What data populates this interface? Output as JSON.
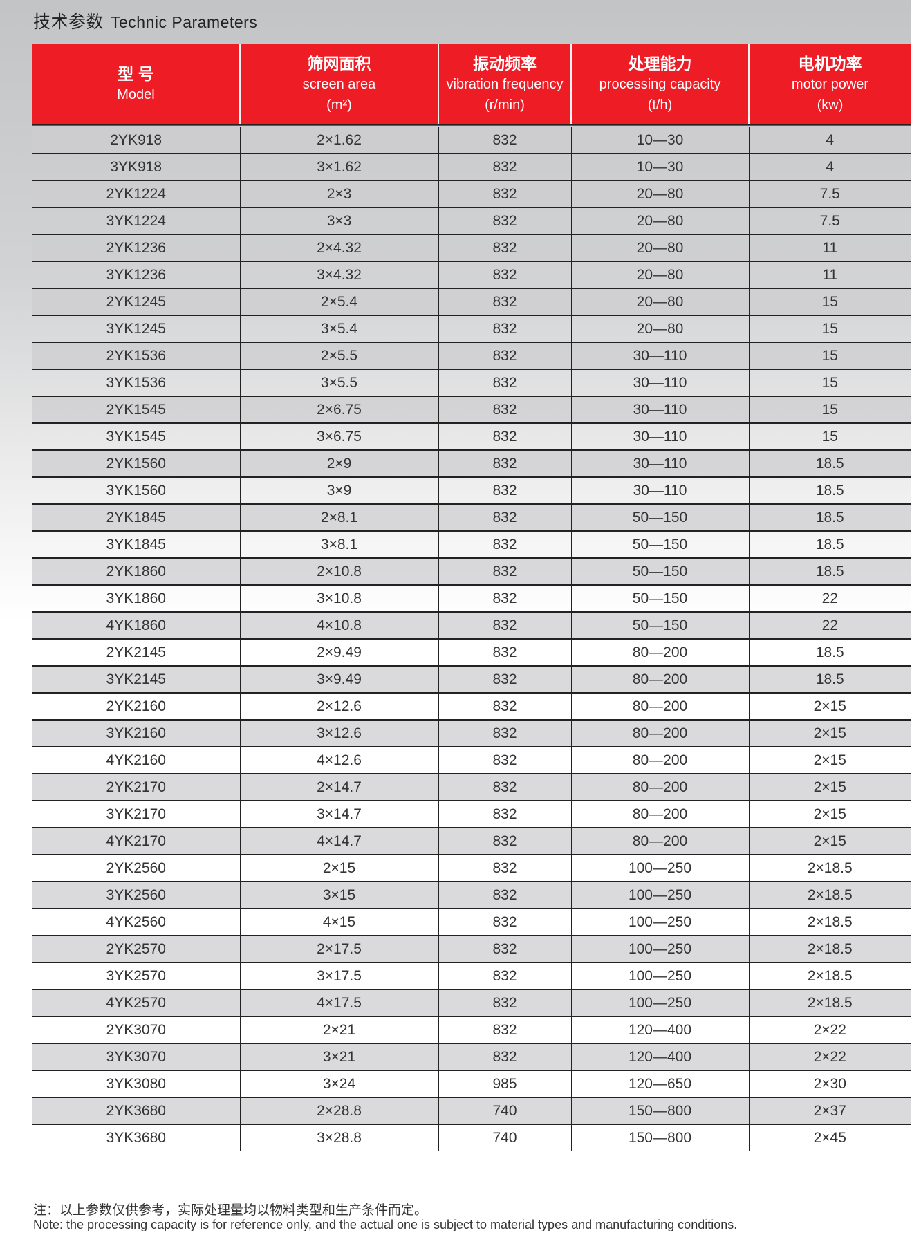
{
  "title": {
    "cn": "技术参数",
    "en": "Technic Parameters"
  },
  "columns": [
    {
      "cn": "型 号",
      "en": "Model",
      "unit": ""
    },
    {
      "cn": "筛网面积",
      "en": "screen area",
      "unit": "(m²)"
    },
    {
      "cn": "振动频率",
      "en": "vibration frequency",
      "unit": "(r/min)"
    },
    {
      "cn": "处理能力",
      "en": "processing capacity",
      "unit": "(t/h)"
    },
    {
      "cn": "电机功率",
      "en": "motor power",
      "unit": "(kw)"
    }
  ],
  "rows": [
    [
      "2YK918",
      "2×1.62",
      "832",
      "10—30",
      "4"
    ],
    [
      "3YK918",
      "3×1.62",
      "832",
      "10—30",
      "4"
    ],
    [
      "2YK1224",
      "2×3",
      "832",
      "20—80",
      "7.5"
    ],
    [
      "3YK1224",
      "3×3",
      "832",
      "20—80",
      "7.5"
    ],
    [
      "2YK1236",
      "2×4.32",
      "832",
      "20—80",
      "11"
    ],
    [
      "3YK1236",
      "3×4.32",
      "832",
      "20—80",
      "11"
    ],
    [
      "2YK1245",
      "2×5.4",
      "832",
      "20—80",
      "15"
    ],
    [
      "3YK1245",
      "3×5.4",
      "832",
      "20—80",
      "15"
    ],
    [
      "2YK1536",
      "2×5.5",
      "832",
      "30—110",
      "15"
    ],
    [
      "3YK1536",
      "3×5.5",
      "832",
      "30—110",
      "15"
    ],
    [
      "2YK1545",
      "2×6.75",
      "832",
      "30—110",
      "15"
    ],
    [
      "3YK1545",
      "3×6.75",
      "832",
      "30—110",
      "15"
    ],
    [
      "2YK1560",
      "2×9",
      "832",
      "30—110",
      "18.5"
    ],
    [
      "3YK1560",
      "3×9",
      "832",
      "30—110",
      "18.5"
    ],
    [
      "2YK1845",
      "2×8.1",
      "832",
      "50—150",
      "18.5"
    ],
    [
      "3YK1845",
      "3×8.1",
      "832",
      "50—150",
      "18.5"
    ],
    [
      "2YK1860",
      "2×10.8",
      "832",
      "50—150",
      "18.5"
    ],
    [
      "3YK1860",
      "3×10.8",
      "832",
      "50—150",
      "22"
    ],
    [
      "4YK1860",
      "4×10.8",
      "832",
      "50—150",
      "22"
    ],
    [
      "2YK2145",
      "2×9.49",
      "832",
      "80—200",
      "18.5"
    ],
    [
      "3YK2145",
      "3×9.49",
      "832",
      "80—200",
      "18.5"
    ],
    [
      "2YK2160",
      "2×12.6",
      "832",
      "80—200",
      "2×15"
    ],
    [
      "3YK2160",
      "3×12.6",
      "832",
      "80—200",
      "2×15"
    ],
    [
      "4YK2160",
      "4×12.6",
      "832",
      "80—200",
      "2×15"
    ],
    [
      "2YK2170",
      "2×14.7",
      "832",
      "80—200",
      "2×15"
    ],
    [
      "3YK2170",
      "3×14.7",
      "832",
      "80—200",
      "2×15"
    ],
    [
      "4YK2170",
      "4×14.7",
      "832",
      "80—200",
      "2×15"
    ],
    [
      "2YK2560",
      "2×15",
      "832",
      "100—250",
      "2×18.5"
    ],
    [
      "3YK2560",
      "3×15",
      "832",
      "100—250",
      "2×18.5"
    ],
    [
      "4YK2560",
      "4×15",
      "832",
      "100—250",
      "2×18.5"
    ],
    [
      "2YK2570",
      "2×17.5",
      "832",
      "100—250",
      "2×18.5"
    ],
    [
      "3YK2570",
      "3×17.5",
      "832",
      "100—250",
      "2×18.5"
    ],
    [
      "4YK2570",
      "4×17.5",
      "832",
      "100—250",
      "2×18.5"
    ],
    [
      "2YK3070",
      "2×21",
      "832",
      "120—400",
      "2×22"
    ],
    [
      "3YK3070",
      "3×21",
      "832",
      "120—400",
      "2×22"
    ],
    [
      "3YK3080",
      "3×24",
      "985",
      "120—650",
      "2×30"
    ],
    [
      "2YK3680",
      "2×28.8",
      "740",
      "150—800",
      "2×37"
    ],
    [
      "3YK3680",
      "3×28.8",
      "740",
      "150—800",
      "2×45"
    ]
  ],
  "notes": {
    "cn": "注：以上参数仅供参考，实际处理量均以物料类型和生产条件而定。",
    "en": "Note: the processing capacity is for reference only, and the actual one is subject to material types and manufacturing conditions."
  },
  "colors": {
    "header_bg": "#ee1c25",
    "header_text": "#ffffff"
  }
}
